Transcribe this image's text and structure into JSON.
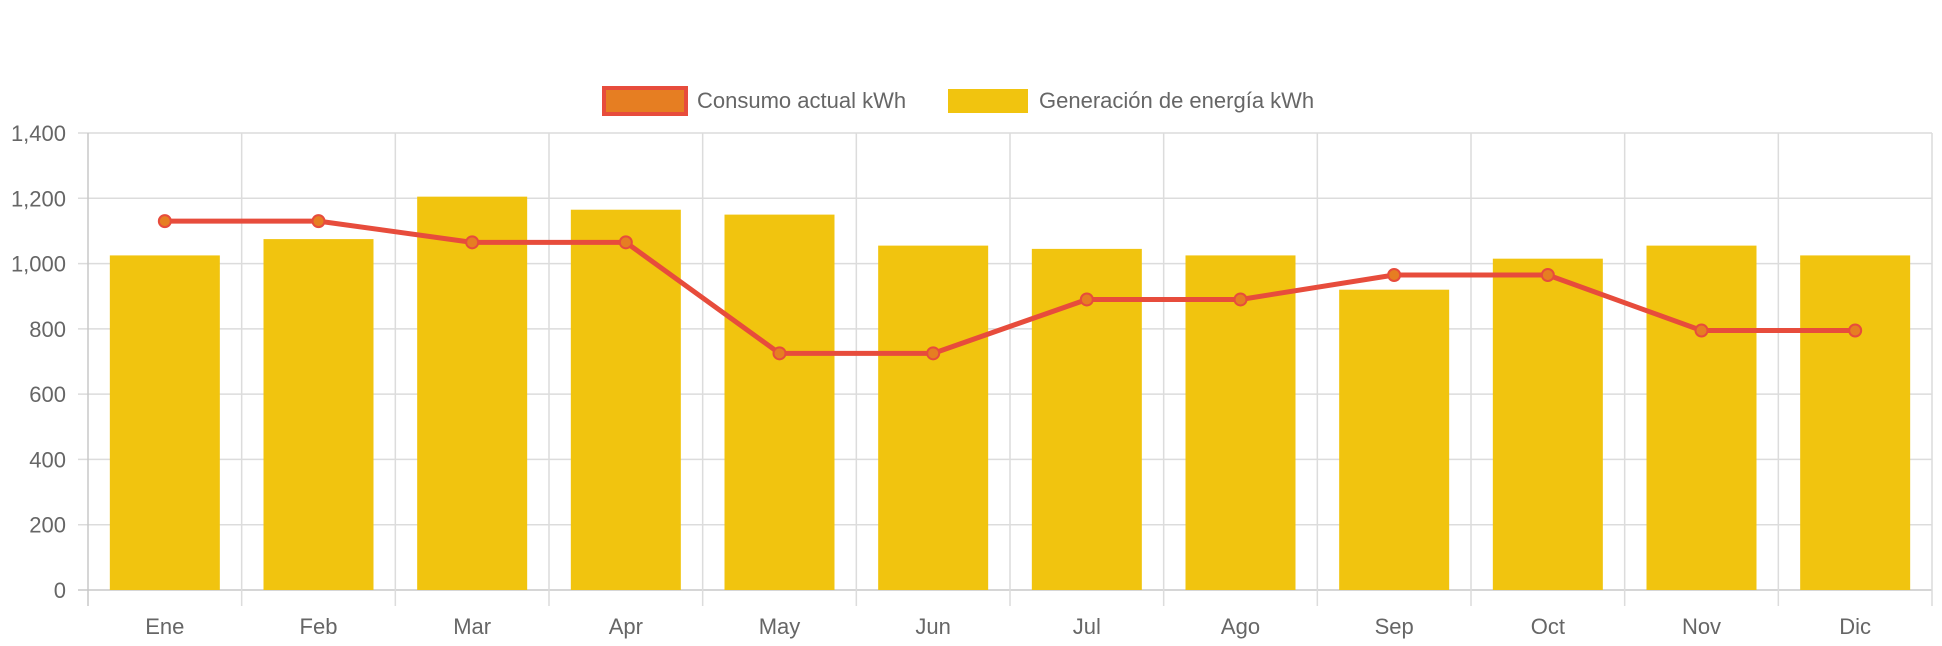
{
  "chart_data": {
    "type": "bar",
    "categories": [
      "Ene",
      "Feb",
      "Mar",
      "Apr",
      "May",
      "Jun",
      "Jul",
      "Ago",
      "Sep",
      "Oct",
      "Nov",
      "Dic"
    ],
    "series": [
      {
        "name": "Consumo actual kWh",
        "kind": "line",
        "values": [
          1130,
          1130,
          1065,
          1065,
          725,
          725,
          890,
          890,
          965,
          965,
          795,
          795
        ],
        "color": "#E74C3C",
        "point_color": "#E67E22"
      },
      {
        "name": "Generación de energía kWh",
        "kind": "bar",
        "values": [
          1025,
          1075,
          1205,
          1165,
          1150,
          1055,
          1045,
          1025,
          920,
          1015,
          1055,
          1025
        ],
        "color": "#F1C40F"
      }
    ],
    "y_ticks": [
      "0",
      "200",
      "400",
      "600",
      "800",
      "1,000",
      "1,200",
      "1,400"
    ],
    "ylim": [
      0,
      1400
    ],
    "y_step": 200,
    "grid": true,
    "legend_position": "top-center",
    "title": "",
    "xlabel": "",
    "ylabel": ""
  }
}
